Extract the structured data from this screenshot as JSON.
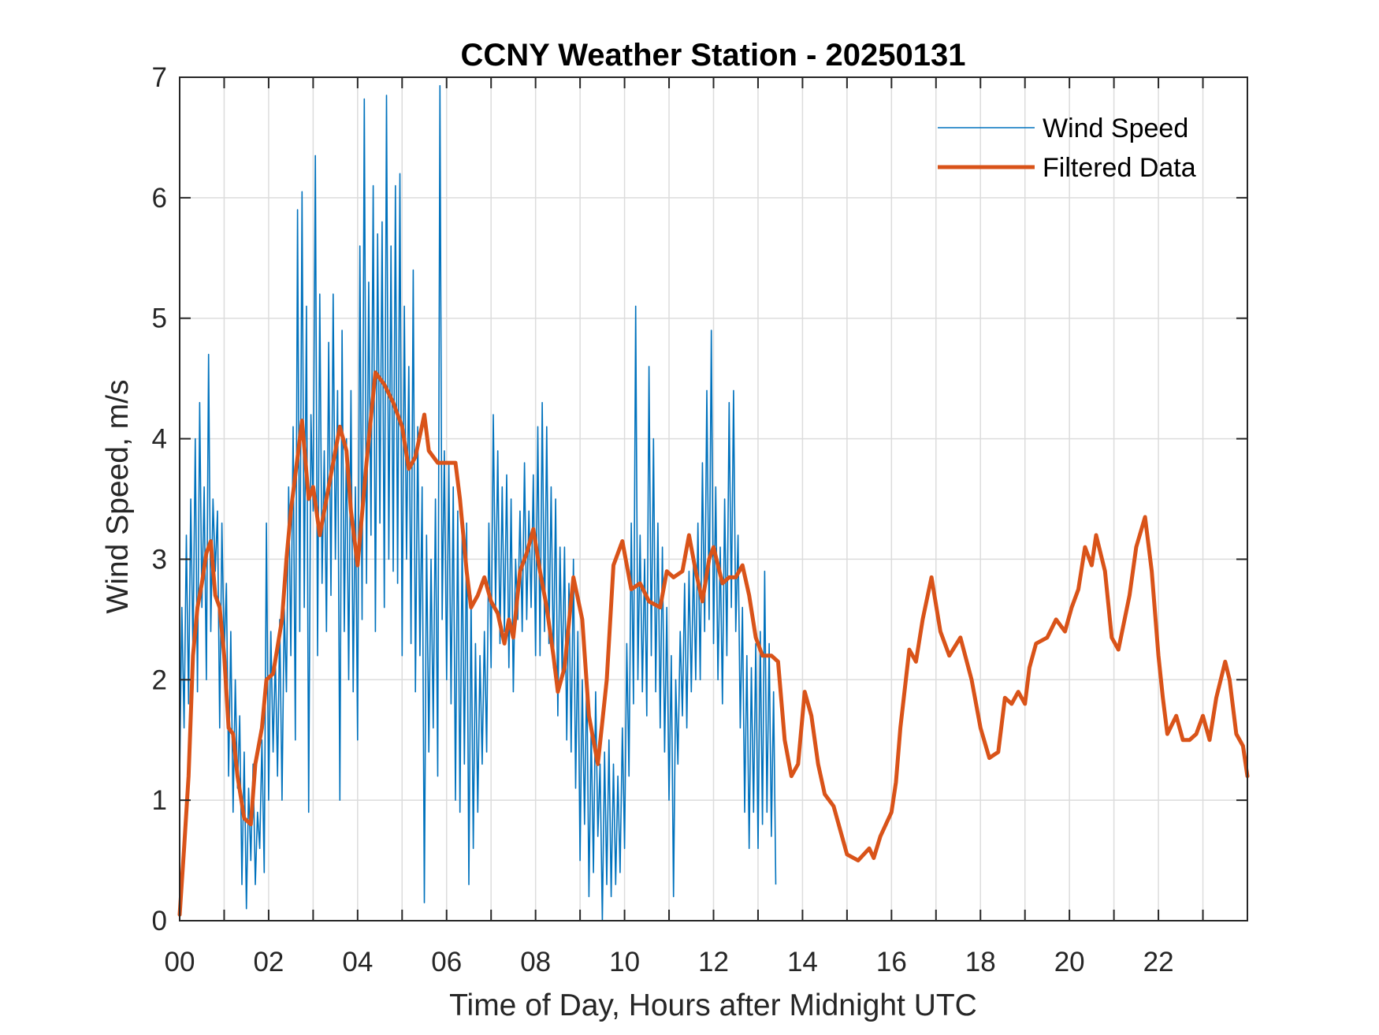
{
  "chart_data": {
    "type": "line",
    "title": "CCNY Weather Station - 20250131",
    "xlabel": "Time of Day, Hours after Midnight UTC",
    "ylabel": "Wind Speed, m/s",
    "xlim": [
      0,
      24
    ],
    "ylim": [
      0,
      7
    ],
    "grid": true,
    "legend_position": "top-right",
    "x_ticks": [
      0,
      2,
      4,
      6,
      8,
      10,
      12,
      14,
      16,
      18,
      20,
      22
    ],
    "x_tick_labels": [
      "00",
      "02",
      "04",
      "06",
      "08",
      "10",
      "12",
      "14",
      "16",
      "18",
      "20",
      "22"
    ],
    "x_minor_grid": [
      1,
      3,
      5,
      7,
      9,
      11,
      13,
      15,
      17,
      19,
      21,
      23
    ],
    "y_ticks": [
      0,
      1,
      2,
      3,
      4,
      5,
      6,
      7
    ],
    "y_tick_labels": [
      "0",
      "1",
      "2",
      "3",
      "4",
      "5",
      "6",
      "7"
    ],
    "series": [
      {
        "name": "Wind Speed",
        "color": "#0072BD",
        "style": "thin",
        "x_step_hours": 0.05,
        "values": [
          1.2,
          2.6,
          1.6,
          3.2,
          1.8,
          3.5,
          2.2,
          4.0,
          1.9,
          4.3,
          2.6,
          3.6,
          2.0,
          4.7,
          2.4,
          3.5,
          2.9,
          3.4,
          1.6,
          3.3,
          2.2,
          2.8,
          1.2,
          2.4,
          0.9,
          2.0,
          1.1,
          1.7,
          0.3,
          1.4,
          0.1,
          1.1,
          0.5,
          1.3,
          0.3,
          0.9,
          0.6,
          1.5,
          0.4,
          3.3,
          1.0,
          2.4,
          1.4,
          2.2,
          1.2,
          2.5,
          1.0,
          2.6,
          1.9,
          3.6,
          2.2,
          4.1,
          1.5,
          5.9,
          2.4,
          6.05,
          2.6,
          5.1,
          0.9,
          4.2,
          3.4,
          6.35,
          2.2,
          5.2,
          2.8,
          3.9,
          2.4,
          4.8,
          2.7,
          5.2,
          3.0,
          4.4,
          1.0,
          4.9,
          2.4,
          4.0,
          2.0,
          4.4,
          1.9,
          3.6,
          1.5,
          5.6,
          2.5,
          6.82,
          2.8,
          5.3,
          3.2,
          6.1,
          2.4,
          5.7,
          3.3,
          5.8,
          2.6,
          6.85,
          3.0,
          5.6,
          2.9,
          6.1,
          2.8,
          6.2,
          2.2,
          5.1,
          3.0,
          4.6,
          2.3,
          5.4,
          1.9,
          4.1,
          2.2,
          3.6,
          0.15,
          3.2,
          1.4,
          3.0,
          1.6,
          3.5,
          1.2,
          6.93,
          2.5,
          3.9,
          2.0,
          3.8,
          1.8,
          3.6,
          1.0,
          3.4,
          0.9,
          3.2,
          1.3,
          3.3,
          0.3,
          2.7,
          0.6,
          2.3,
          0.9,
          2.2,
          1.3,
          2.4,
          1.4,
          3.3,
          2.1,
          4.2,
          2.6,
          3.9,
          2.3,
          3.6,
          2.4,
          3.7,
          2.1,
          3.5,
          1.9,
          3.0,
          2.5,
          3.4,
          2.4,
          3.8,
          2.5,
          3.4,
          2.6,
          3.7,
          2.2,
          4.1,
          2.2,
          4.3,
          2.4,
          4.1,
          2.3,
          3.6,
          2.1,
          3.5,
          1.7,
          3.1,
          2.0,
          3.1,
          1.5,
          2.8,
          1.4,
          3.0,
          1.1,
          2.4,
          0.5,
          2.0,
          0.8,
          2.1,
          0.2,
          1.6,
          0.4,
          1.9,
          0.7,
          1.3,
          0.0,
          1.4,
          0.3,
          1.5,
          0.2,
          1.3,
          0.3,
          1.2,
          0.4,
          1.6,
          0.6,
          2.3,
          1.2,
          3.3,
          1.8,
          5.1,
          2.0,
          3.2,
          1.9,
          3.0,
          1.7,
          4.6,
          2.2,
          4.0,
          1.9,
          3.3,
          1.6,
          3.1,
          1.4,
          2.6,
          1.0,
          2.2,
          0.2,
          2.0,
          1.3,
          2.4,
          1.7,
          2.8,
          1.6,
          2.9,
          1.9,
          3.0,
          2.0,
          3.3,
          2.0,
          3.8,
          2.4,
          4.4,
          2.5,
          4.9,
          2.3,
          3.6,
          2.0,
          3.1,
          1.8,
          3.5,
          2.2,
          4.3,
          2.6,
          4.4,
          2.4,
          3.2,
          1.6,
          2.6,
          0.9,
          2.2,
          0.6,
          2.1,
          0.9,
          2.3,
          0.6,
          2.4,
          0.8,
          2.9,
          0.9,
          2.3,
          0.7,
          1.9,
          0.3
        ]
      },
      {
        "name": "Filtered Data",
        "color": "#D95319",
        "style": "thick",
        "points": [
          [
            0.0,
            0.05
          ],
          [
            0.1,
            0.6
          ],
          [
            0.2,
            1.2
          ],
          [
            0.3,
            2.2
          ],
          [
            0.4,
            2.6
          ],
          [
            0.5,
            2.8
          ],
          [
            0.6,
            3.05
          ],
          [
            0.7,
            3.15
          ],
          [
            0.8,
            2.7
          ],
          [
            0.9,
            2.6
          ],
          [
            1.0,
            2.2
          ],
          [
            1.1,
            1.6
          ],
          [
            1.2,
            1.55
          ],
          [
            1.3,
            1.2
          ],
          [
            1.45,
            0.85
          ],
          [
            1.6,
            0.8
          ],
          [
            1.7,
            1.3
          ],
          [
            1.85,
            1.6
          ],
          [
            1.95,
            2.0
          ],
          [
            2.1,
            2.05
          ],
          [
            2.3,
            2.5
          ],
          [
            2.4,
            3.0
          ],
          [
            2.5,
            3.4
          ],
          [
            2.6,
            3.7
          ],
          [
            2.75,
            4.15
          ],
          [
            2.9,
            3.5
          ],
          [
            3.0,
            3.6
          ],
          [
            3.15,
            3.2
          ],
          [
            3.3,
            3.5
          ],
          [
            3.5,
            3.9
          ],
          [
            3.6,
            4.1
          ],
          [
            3.75,
            3.9
          ],
          [
            3.85,
            3.4
          ],
          [
            4.0,
            2.95
          ],
          [
            4.2,
            3.8
          ],
          [
            4.4,
            4.55
          ],
          [
            4.6,
            4.45
          ],
          [
            4.8,
            4.3
          ],
          [
            5.0,
            4.1
          ],
          [
            5.15,
            3.75
          ],
          [
            5.3,
            3.85
          ],
          [
            5.5,
            4.2
          ],
          [
            5.6,
            3.9
          ],
          [
            5.8,
            3.8
          ],
          [
            6.0,
            3.8
          ],
          [
            6.2,
            3.8
          ],
          [
            6.3,
            3.5
          ],
          [
            6.45,
            2.9
          ],
          [
            6.55,
            2.6
          ],
          [
            6.7,
            2.7
          ],
          [
            6.85,
            2.85
          ],
          [
            7.0,
            2.65
          ],
          [
            7.15,
            2.55
          ],
          [
            7.3,
            2.3
          ],
          [
            7.4,
            2.5
          ],
          [
            7.5,
            2.35
          ],
          [
            7.65,
            2.9
          ],
          [
            7.8,
            3.05
          ],
          [
            7.95,
            3.25
          ],
          [
            8.1,
            2.9
          ],
          [
            8.25,
            2.6
          ],
          [
            8.4,
            2.2
          ],
          [
            8.5,
            1.9
          ],
          [
            8.65,
            2.1
          ],
          [
            8.85,
            2.85
          ],
          [
            9.05,
            2.5
          ],
          [
            9.2,
            1.7
          ],
          [
            9.4,
            1.3
          ],
          [
            9.6,
            2.0
          ],
          [
            9.75,
            2.95
          ],
          [
            9.95,
            3.15
          ],
          [
            10.15,
            2.75
          ],
          [
            10.35,
            2.8
          ],
          [
            10.55,
            2.65
          ],
          [
            10.8,
            2.6
          ],
          [
            10.95,
            2.9
          ],
          [
            11.1,
            2.85
          ],
          [
            11.3,
            2.9
          ],
          [
            11.45,
            3.2
          ],
          [
            11.6,
            2.9
          ],
          [
            11.75,
            2.65
          ],
          [
            11.9,
            3.0
          ],
          [
            12.0,
            3.1
          ],
          [
            12.1,
            2.95
          ],
          [
            12.2,
            2.8
          ],
          [
            12.35,
            2.85
          ],
          [
            12.5,
            2.85
          ],
          [
            12.65,
            2.95
          ],
          [
            12.8,
            2.7
          ],
          [
            12.95,
            2.35
          ],
          [
            13.1,
            2.2
          ],
          [
            13.3,
            2.2
          ],
          [
            13.45,
            2.15
          ],
          [
            13.6,
            1.5
          ],
          [
            13.75,
            1.2
          ],
          [
            13.9,
            1.3
          ],
          [
            14.05,
            1.9
          ],
          [
            14.2,
            1.7
          ],
          [
            14.35,
            1.3
          ],
          [
            14.5,
            1.05
          ],
          [
            14.7,
            0.95
          ],
          [
            14.85,
            0.75
          ],
          [
            15.0,
            0.55
          ],
          [
            15.25,
            0.5
          ],
          [
            15.5,
            0.6
          ],
          [
            15.6,
            0.52
          ],
          [
            15.75,
            0.7
          ],
          [
            16.0,
            0.9
          ],
          [
            16.1,
            1.15
          ],
          [
            16.2,
            1.6
          ],
          [
            16.4,
            2.25
          ],
          [
            16.55,
            2.15
          ],
          [
            16.7,
            2.5
          ],
          [
            16.9,
            2.85
          ],
          [
            17.1,
            2.4
          ],
          [
            17.3,
            2.2
          ],
          [
            17.55,
            2.35
          ],
          [
            17.8,
            2.0
          ],
          [
            18.0,
            1.6
          ],
          [
            18.2,
            1.35
          ],
          [
            18.4,
            1.4
          ],
          [
            18.55,
            1.85
          ],
          [
            18.7,
            1.8
          ],
          [
            18.85,
            1.9
          ],
          [
            19.0,
            1.8
          ],
          [
            19.1,
            2.1
          ],
          [
            19.25,
            2.3
          ],
          [
            19.5,
            2.35
          ],
          [
            19.7,
            2.5
          ],
          [
            19.9,
            2.4
          ],
          [
            20.05,
            2.6
          ],
          [
            20.2,
            2.75
          ],
          [
            20.35,
            3.1
          ],
          [
            20.5,
            2.95
          ],
          [
            20.6,
            3.2
          ],
          [
            20.8,
            2.9
          ],
          [
            20.95,
            2.35
          ],
          [
            21.1,
            2.25
          ],
          [
            21.35,
            2.7
          ],
          [
            21.5,
            3.1
          ],
          [
            21.7,
            3.35
          ],
          [
            21.85,
            2.9
          ],
          [
            22.0,
            2.2
          ],
          [
            22.1,
            1.85
          ],
          [
            22.2,
            1.55
          ],
          [
            22.4,
            1.7
          ],
          [
            22.55,
            1.5
          ],
          [
            22.7,
            1.5
          ],
          [
            22.85,
            1.55
          ],
          [
            23.0,
            1.7
          ],
          [
            23.15,
            1.5
          ],
          [
            23.3,
            1.85
          ],
          [
            23.5,
            2.15
          ],
          [
            23.6,
            2.0
          ],
          [
            23.75,
            1.55
          ],
          [
            23.9,
            1.45
          ],
          [
            24.0,
            1.2
          ]
        ]
      }
    ],
    "legend": [
      {
        "label": "Wind Speed",
        "color": "#0072BD"
      },
      {
        "label": "Filtered Data",
        "color": "#D95319"
      }
    ]
  }
}
